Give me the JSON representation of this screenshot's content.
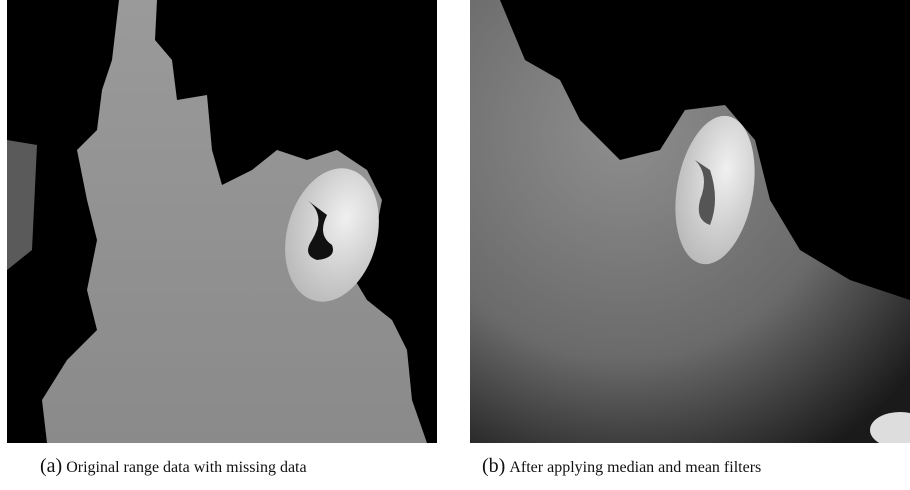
{
  "figure": {
    "panels": [
      {
        "label": "(a)",
        "caption": "Original range data with missing data"
      },
      {
        "label": "(b)",
        "caption": "After applying median and mean filters"
      }
    ]
  }
}
